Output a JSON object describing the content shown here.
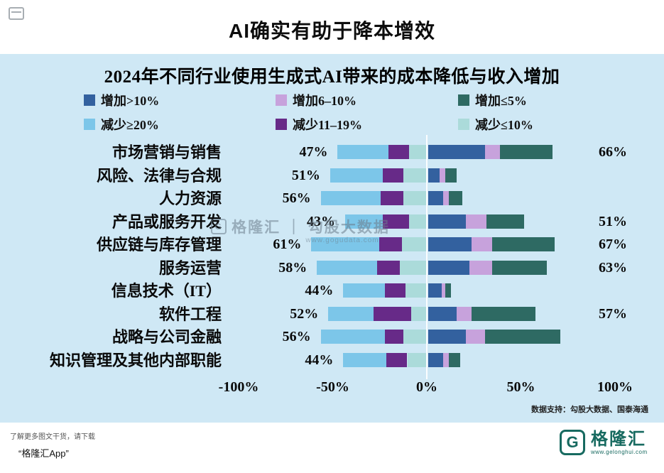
{
  "page": {
    "title": "AI确实有助于降本增效"
  },
  "chart_data": {
    "type": "bar",
    "variant": "diverging-stacked-horizontal",
    "title": "2024年不同行业使用生成式AI带来的成本降低与收入增加",
    "xlabel": "",
    "ylabel": "",
    "xlim": [
      -100,
      100
    ],
    "x_unit": "%",
    "grid": false,
    "legend_position": "top",
    "x_ticks": [
      {
        "label": "-100%",
        "value": -100
      },
      {
        "label": "-50%",
        "value": -50
      },
      {
        "label": "0%",
        "value": 0
      },
      {
        "label": "50%",
        "value": 50
      },
      {
        "label": "100%",
        "value": 100
      }
    ],
    "colors": {
      "increase_gt10": "#33619f",
      "increase_6_10": "#c7a2dc",
      "increase_le5": "#2e6a63",
      "decrease_ge20": "#7cc6e9",
      "decrease_11_19": "#672a88",
      "decrease_le10": "#abdbda"
    },
    "legend_items": [
      {
        "label": "增加>10%",
        "color_key": "increase_gt10"
      },
      {
        "label": "增加6–10%",
        "color_key": "increase_6_10"
      },
      {
        "label": "增加≤5%",
        "color_key": "increase_le5"
      },
      {
        "label": "减少≥20%",
        "color_key": "decrease_ge20"
      },
      {
        "label": "减少11–19%",
        "color_key": "decrease_11_19"
      },
      {
        "label": "减少≤10%",
        "color_key": "decrease_le10"
      }
    ],
    "decrease_order": [
      "le10",
      "p11_19",
      "ge20"
    ],
    "increase_order": [
      "gt10",
      "p6_10",
      "le5"
    ],
    "decrease_color_keys": {
      "le10": "decrease_le10",
      "p11_19": "decrease_11_19",
      "ge20": "decrease_ge20"
    },
    "increase_color_keys": {
      "gt10": "increase_gt10",
      "p6_10": "increase_6_10",
      "le5": "increase_le5"
    },
    "rows": [
      {
        "category": "市场营销与销售",
        "decrease_label": "47%",
        "increase_label": "66%",
        "decrease": {
          "le10": 9,
          "p11_19": 11,
          "ge20": 27
        },
        "increase": {
          "gt10": 30,
          "p6_10": 8,
          "le5": 28
        }
      },
      {
        "category": "风险、法律与合规",
        "decrease_label": "51%",
        "increase_label": null,
        "decrease": {
          "le10": 12,
          "p11_19": 11,
          "ge20": 28
        },
        "increase": {
          "gt10": 6,
          "p6_10": 3,
          "le5": 6
        }
      },
      {
        "category": "人力资源",
        "decrease_label": "56%",
        "increase_label": null,
        "decrease": {
          "le10": 12,
          "p11_19": 12,
          "ge20": 32
        },
        "increase": {
          "gt10": 8,
          "p6_10": 3,
          "le5": 7
        }
      },
      {
        "category": "产品或服务开发",
        "decrease_label": "43%",
        "increase_label": "51%",
        "decrease": {
          "le10": 9,
          "p11_19": 14,
          "ge20": 20
        },
        "increase": {
          "gt10": 20,
          "p6_10": 11,
          "le5": 20
        }
      },
      {
        "category": "供应链与库存管理",
        "decrease_label": "61%",
        "increase_label": "67%",
        "decrease": {
          "le10": 13,
          "p11_19": 12,
          "ge20": 36
        },
        "increase": {
          "gt10": 23,
          "p6_10": 11,
          "le5": 33
        }
      },
      {
        "category": "服务运营",
        "decrease_label": "58%",
        "increase_label": "63%",
        "decrease": {
          "le10": 14,
          "p11_19": 12,
          "ge20": 32
        },
        "increase": {
          "gt10": 22,
          "p6_10": 12,
          "le5": 29
        }
      },
      {
        "category": "信息技术（IT）",
        "decrease_label": "44%",
        "increase_label": null,
        "decrease": {
          "le10": 11,
          "p11_19": 11,
          "ge20": 22
        },
        "increase": {
          "gt10": 7,
          "p6_10": 2,
          "le5": 3
        }
      },
      {
        "category": "软件工程",
        "decrease_label": "52%",
        "increase_label": "57%",
        "decrease": {
          "le10": 8,
          "p11_19": 20,
          "ge20": 24
        },
        "increase": {
          "gt10": 15,
          "p6_10": 8,
          "le5": 34
        }
      },
      {
        "category": "战略与公司金融",
        "decrease_label": "56%",
        "increase_label": null,
        "decrease": {
          "le10": 12,
          "p11_19": 10,
          "ge20": 34
        },
        "increase": {
          "gt10": 20,
          "p6_10": 10,
          "le5": 40
        }
      },
      {
        "category": "知识管理及其他内部职能",
        "decrease_label": "44%",
        "increase_label": null,
        "decrease": {
          "le10": 10,
          "p11_19": 11,
          "ge20": 23
        },
        "increase": {
          "gt10": 8,
          "p6_10": 3,
          "le5": 6
        }
      }
    ]
  },
  "watermark": {
    "logo_letter": "G",
    "line1": "格隆汇 ｜ 勾股大数据",
    "line2": "www.gogudata.com"
  },
  "source_note": "数据支持：勾股大数据、国泰海通",
  "footer": {
    "hint": "了解更多图文干货，请下载",
    "app_name": "“格隆汇App”",
    "logo": {
      "letter": "G",
      "name": "格隆汇",
      "url": "www.gelonghui.com"
    }
  }
}
